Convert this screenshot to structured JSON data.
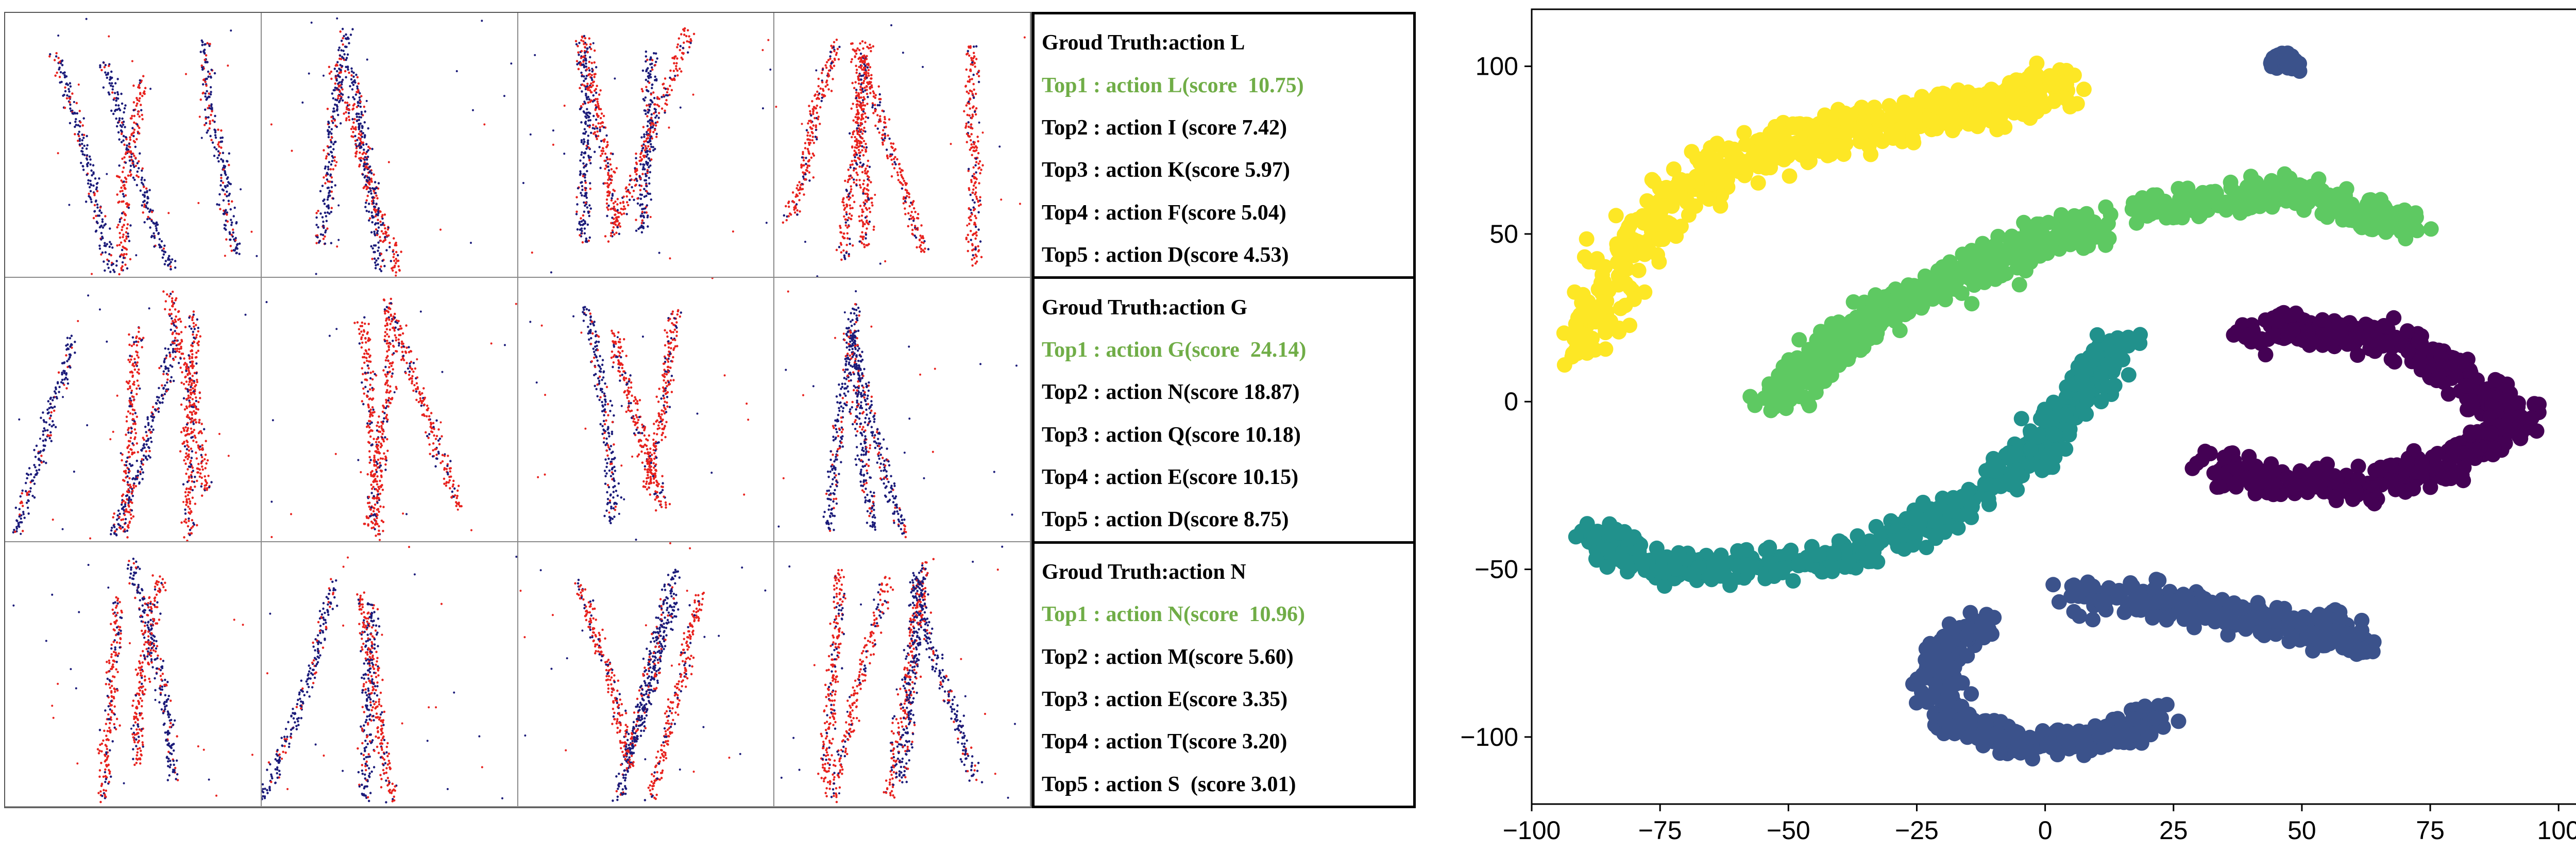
{
  "predictions": [
    {
      "ground_truth": "Groud Truth:action L",
      "top": [
        "Top1 : action L(score  10.75)",
        "Top2 : action I (score 7.42)",
        "Top3 : action K(score 5.97)",
        "Top4 : action F(score 5.04)",
        "Top5 : action D(score 4.53)"
      ]
    },
    {
      "ground_truth": "Groud Truth:action G",
      "top": [
        "Top1 : action G(score  24.14)",
        "Top2 : action N(score 18.87)",
        "Top3 : action Q(score 10.18)",
        "Top4 : action E(score 10.15)",
        "Top5 : action D(score 8.75)"
      ]
    },
    {
      "ground_truth": "Groud Truth:action N",
      "top": [
        "Top1 : action N(score  10.96)",
        "Top2 : action M(score 5.60)",
        "Top3 : action E(score 3.35)",
        "Top4 : action T(score 3.20)",
        "Top5 : action S  (score 3.01)"
      ]
    }
  ],
  "colors": {
    "top1_text": "#70ad47",
    "event_positive": "#e8231f",
    "event_negative": "#1c1c7a",
    "cluster_purple": "#440154",
    "cluster_blue": "#3b528b",
    "cluster_teal": "#21918c",
    "cluster_green": "#5ec962",
    "cluster_yellow": "#fde725"
  },
  "chart_data": {
    "type": "scatter",
    "xlim": [
      -100,
      107
    ],
    "ylim": [
      -120,
      117
    ],
    "xticks": [
      "−100",
      "−75",
      "−50",
      "−25",
      "0",
      "25",
      "50",
      "75",
      "100"
    ],
    "yticks": [
      "100",
      "50",
      "0",
      "−50",
      "−100"
    ],
    "xtick_values": [
      -100,
      -75,
      -50,
      -25,
      0,
      25,
      50,
      75,
      100
    ],
    "ytick_values": [
      100,
      50,
      0,
      -50,
      -100
    ],
    "grid": false,
    "clusters": [
      {
        "color": "#fde725",
        "path": [
          [
            -88,
            15
          ],
          [
            -84,
            40
          ],
          [
            -72,
            60
          ],
          [
            -60,
            72
          ],
          [
            -47,
            78
          ],
          [
            -33,
            82
          ],
          [
            -20,
            86
          ],
          [
            -8,
            90
          ],
          [
            5,
            95
          ]
        ],
        "width": 12
      },
      {
        "color": "#5ec962",
        "path": [
          [
            -52,
            0
          ],
          [
            -44,
            12
          ],
          [
            -34,
            24
          ],
          [
            -22,
            34
          ],
          [
            -10,
            42
          ],
          [
            2,
            50
          ],
          [
            10,
            53
          ]
        ],
        "width": 10
      },
      {
        "color": "#5ec962",
        "path": [
          [
            20,
            57
          ],
          [
            35,
            60
          ],
          [
            48,
            63
          ],
          [
            60,
            57
          ],
          [
            72,
            52
          ]
        ],
        "width": 8
      },
      {
        "color": "#21918c",
        "path": [
          [
            -88,
            -40
          ],
          [
            -78,
            -48
          ],
          [
            -63,
            -50
          ],
          [
            -45,
            -48
          ],
          [
            -28,
            -40
          ],
          [
            -12,
            -28
          ],
          [
            0,
            -12
          ],
          [
            8,
            4
          ],
          [
            15,
            18
          ]
        ],
        "width": 9
      },
      {
        "color": "#440154",
        "path": [
          [
            40,
            20
          ],
          [
            55,
            22
          ],
          [
            72,
            16
          ],
          [
            84,
            4
          ],
          [
            92,
            -5
          ],
          [
            80,
            -18
          ],
          [
            64,
            -25
          ],
          [
            47,
            -25
          ],
          [
            32,
            -18
          ]
        ],
        "width": 9
      },
      {
        "color": "#3b528b",
        "path": [
          [
            5,
            -57
          ],
          [
            22,
            -60
          ],
          [
            40,
            -65
          ],
          [
            55,
            -68
          ],
          [
            62,
            -72
          ]
        ],
        "width": 9
      },
      {
        "color": "#3b528b",
        "path": [
          [
            -12,
            -65
          ],
          [
            -22,
            -78
          ],
          [
            -18,
            -95
          ],
          [
            -5,
            -102
          ],
          [
            10,
            -100
          ],
          [
            22,
            -94
          ]
        ],
        "width": 8
      },
      {
        "color": "#3b528b",
        "path": [
          [
            45,
            101
          ],
          [
            47,
            103
          ],
          [
            48,
            100
          ]
        ],
        "width": 3
      }
    ]
  }
}
